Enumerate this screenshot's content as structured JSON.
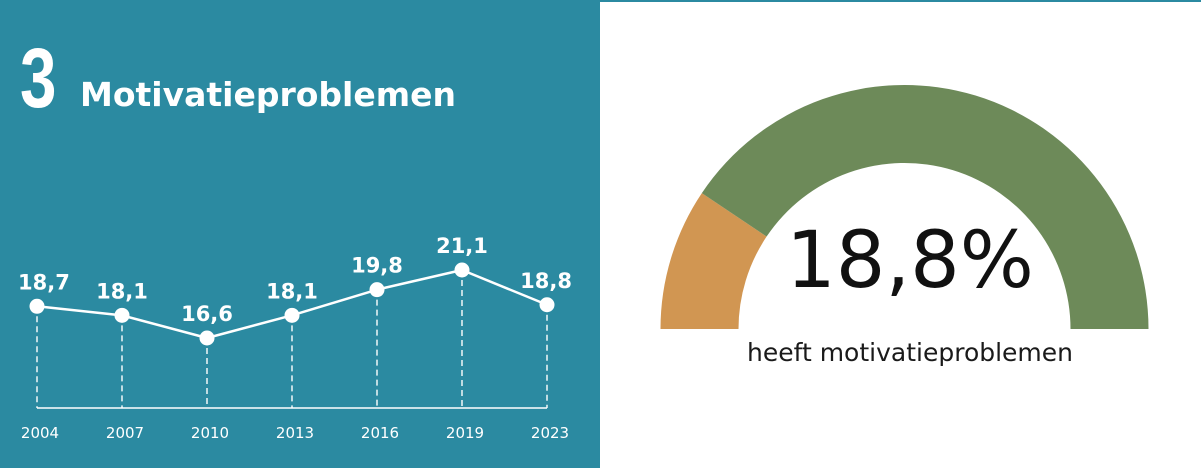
{
  "colors": {
    "panel_bg": "#2b8aa1",
    "line": "#ffffff",
    "gauge_filled": "#d19652",
    "gauge_rest": "#6d8a59"
  },
  "section": {
    "number": "3",
    "title": "Motivatieproblemen"
  },
  "gauge": {
    "value_label": "18,8%",
    "caption": "heeft motivatieproblemen"
  },
  "chart_data": [
    {
      "type": "line",
      "title": "",
      "xlabel": "",
      "ylabel": "",
      "x": [
        "2004",
        "2007",
        "2010",
        "2013",
        "2016",
        "2019",
        "2023"
      ],
      "series": [
        {
          "values": [
            18.7,
            18.1,
            16.6,
            18.1,
            19.8,
            21.1,
            18.8
          ]
        }
      ],
      "data_labels": [
        "18,7",
        "18,1",
        "16,6",
        "18,1",
        "19,8",
        "21,1",
        "18,8"
      ],
      "grid": false,
      "legend": "none"
    },
    {
      "type": "pie",
      "title": "",
      "style": "semicircle gauge",
      "slices": [
        {
          "value": 18.8
        },
        {
          "value": 81.2
        }
      ],
      "legend": "none"
    }
  ]
}
